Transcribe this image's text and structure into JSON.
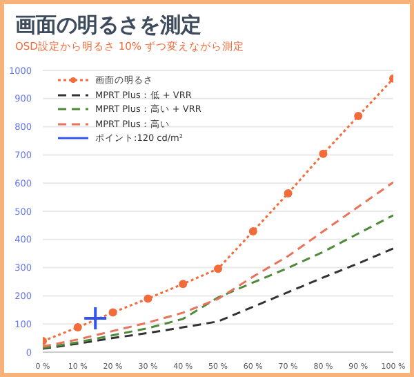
{
  "chart_data": {
    "type": "line",
    "title": "画面の明るさを測定",
    "subtitle": "OSD設定から明るさ 10% ずつ変えながら測定",
    "x": [
      0,
      10,
      20,
      30,
      40,
      50,
      60,
      70,
      80,
      90,
      100
    ],
    "xlim": [
      0,
      100
    ],
    "xticks": [
      {
        "value": 0,
        "label": "0 %"
      },
      {
        "value": 10,
        "label": "10 %"
      },
      {
        "value": 20,
        "label": "20 %"
      },
      {
        "value": 30,
        "label": "30 %"
      },
      {
        "value": 40,
        "label": "40 %"
      },
      {
        "value": 50,
        "label": "50 %"
      },
      {
        "value": 60,
        "label": "60 %"
      },
      {
        "value": 70,
        "label": "70 %"
      },
      {
        "value": 80,
        "label": "80 %"
      },
      {
        "value": 90,
        "label": "90 %"
      },
      {
        "value": 100,
        "label": "100 %"
      }
    ],
    "ylim": [
      0,
      1000
    ],
    "yticks": [
      0,
      100,
      200,
      300,
      400,
      500,
      600,
      700,
      800,
      900,
      1000
    ],
    "grid": "y",
    "legend": "top left",
    "series": [
      {
        "name": "画面の明るさ",
        "color": "#f26b3a",
        "marker": "circle",
        "line_style": "dotted",
        "values": [
          39,
          88,
          141,
          190,
          242,
          296,
          429,
          564,
          704,
          838,
          971
        ]
      },
      {
        "name": "MPRT Plus：低 + VRR",
        "color": "#333333",
        "marker": "none",
        "line_style": "dashed",
        "values": [
          12,
          30,
          50,
          68,
          88,
          109,
          161,
          213,
          265,
          315,
          368
        ]
      },
      {
        "name": "MPRT Plus：高い + VRR",
        "color": "#4e8a3a",
        "marker": "none",
        "line_style": "dashed",
        "values": [
          15,
          35,
          60,
          85,
          118,
          194,
          247,
          299,
          356,
          421,
          486
        ]
      },
      {
        "name": "MPRT Plus：高い",
        "color": "#e8735a",
        "marker": "none",
        "line_style": "dashed",
        "values": [
          20,
          45,
          75,
          105,
          140,
          189,
          268,
          341,
          429,
          516,
          603
        ]
      },
      {
        "name": "ポイント:120 cd/m²",
        "type": "scatter",
        "color": "#3355ee",
        "marker": "cross",
        "x": [
          15
        ],
        "values": [
          120
        ]
      }
    ]
  }
}
